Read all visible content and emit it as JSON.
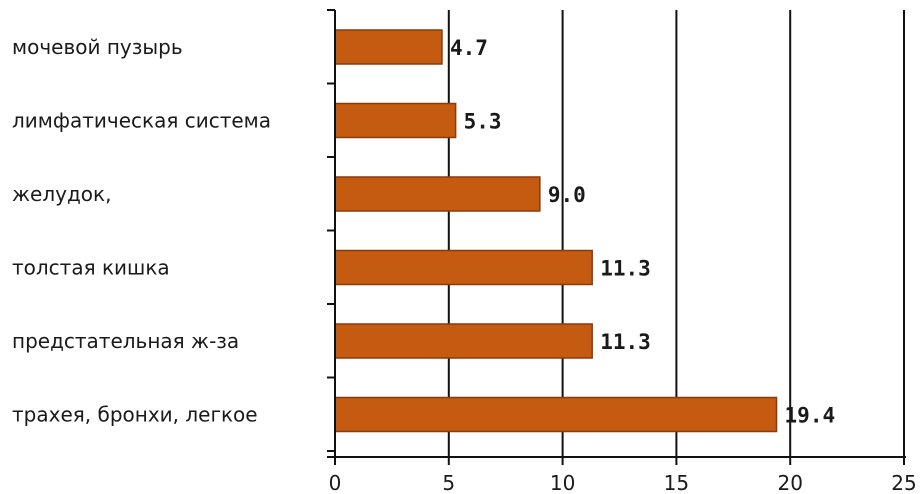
{
  "chart_data": {
    "type": "bar",
    "orientation": "horizontal",
    "categories": [
      "мочевой пузырь",
      "лимфатическая система",
      "желудок,",
      "толстая кишка",
      "предстательная ж-за",
      "трахея, бронхи, легкое"
    ],
    "values": [
      4.7,
      5.3,
      9.0,
      11.3,
      11.3,
      19.4
    ],
    "value_labels": [
      "4.7",
      "5.3",
      "9.0",
      "11.3",
      "11.3",
      "19.4"
    ],
    "x_ticks": [
      "0",
      "5",
      "10",
      "15",
      "20",
      "25"
    ],
    "xlim": [
      0,
      25
    ],
    "title": "",
    "xlabel": "",
    "ylabel": "",
    "grid": "vertical",
    "legend": "none",
    "bar_color": "#c55a11",
    "bar_edge_color": "#8b3a0a"
  }
}
